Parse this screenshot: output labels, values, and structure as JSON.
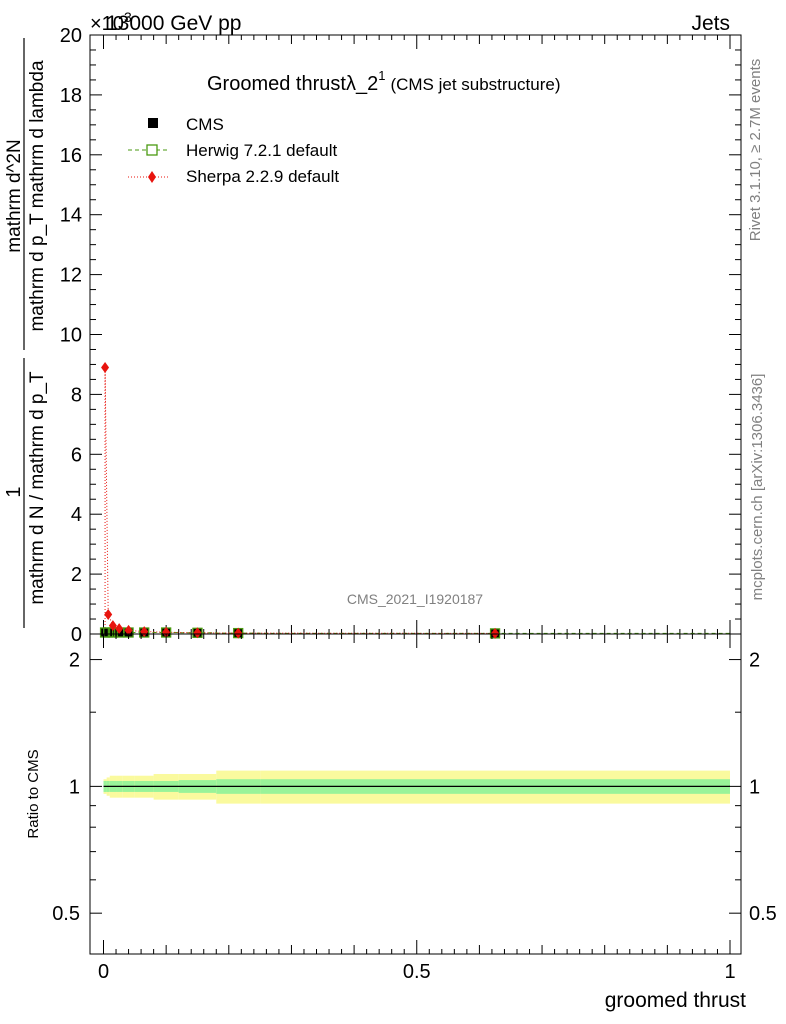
{
  "header": {
    "energy_label": "13000 GeV pp",
    "process_label": "Jets",
    "exponent_label": "×10",
    "exponent_power": "3"
  },
  "side_labels": {
    "rivet": "Rivet 3.1.10, ≥ 2.7M events",
    "mcplots": "mcplots.cern.ch [arXiv:1306.3436]"
  },
  "watermark": "CMS_2021_I1920187",
  "colors": {
    "cms": "#000000",
    "herwig": "#4a9a12",
    "sherpa": "#e8140e",
    "band_inner": "#99f399",
    "band_outer": "#fafa9e"
  },
  "chart_data": [
    {
      "type": "scatter",
      "title_main": "Groomed thrust",
      "title_symbol": "λ_2",
      "title_sup": "1",
      "title_sub": "(CMS jet substructure)",
      "ylabel_numerator": "1",
      "ylabel_denominator": "mathrm d N / mathrm d p_T",
      "ylabel_right_num": "mathrm d^2N",
      "ylabel_right_den": "mathrm d p_T mathrm d lambda",
      "xlim": [
        0,
        1
      ],
      "ylim": [
        0,
        20
      ],
      "y_multiplier": 1000,
      "y_ticks": [
        0,
        2,
        4,
        6,
        8,
        10,
        12,
        14,
        16,
        18,
        20
      ],
      "x_ticks": [
        0,
        0.5,
        1
      ],
      "legend": [
        {
          "key": "cms",
          "label": "CMS",
          "marker": "square-filled"
        },
        {
          "key": "herwig",
          "label": "Herwig 7.2.1 default",
          "marker": "square-open"
        },
        {
          "key": "sherpa",
          "label": "Sherpa 2.2.9 default",
          "marker": "diamond"
        }
      ],
      "legend_position": "top-left",
      "bins": [
        0,
        0.005,
        0.01,
        0.02,
        0.03,
        0.05,
        0.08,
        0.12,
        0.18,
        0.25,
        1.0
      ],
      "series": [
        {
          "name": "CMS",
          "key": "cms",
          "x": [
            0.0025,
            0.0075,
            0.015,
            0.025,
            0.04,
            0.065,
            0.1,
            0.15,
            0.215,
            0.625
          ],
          "y": [
            0.05,
            0.05,
            0.05,
            0.05,
            0.05,
            0.05,
            0.05,
            0.04,
            0.03,
            0.02
          ]
        },
        {
          "name": "Herwig 7.2.1 default",
          "key": "herwig",
          "x": [
            0.0025,
            0.0075,
            0.015,
            0.025,
            0.04,
            0.065,
            0.1,
            0.15,
            0.215,
            0.625
          ],
          "y": [
            0.05,
            0.05,
            0.05,
            0.05,
            0.05,
            0.05,
            0.05,
            0.04,
            0.03,
            0.02
          ]
        },
        {
          "name": "Sherpa 2.2.9 default",
          "key": "sherpa",
          "x": [
            0.0025,
            0.0075,
            0.015,
            0.025,
            0.04,
            0.065,
            0.1,
            0.15,
            0.215,
            0.625
          ],
          "y": [
            8.9,
            0.65,
            0.28,
            0.18,
            0.12,
            0.08,
            0.06,
            0.04,
            0.03,
            0.02
          ]
        }
      ]
    },
    {
      "type": "line",
      "ylabel": "Ratio to CMS",
      "xlabel": "groomed thrust",
      "xlim": [
        0,
        1
      ],
      "ylim": [
        0.4,
        2.3
      ],
      "y_scale": "log",
      "y_ticks": [
        0.5,
        1,
        2
      ],
      "reference": 1,
      "bins": [
        0,
        0.005,
        0.01,
        0.02,
        0.03,
        0.05,
        0.08,
        0.12,
        0.18,
        0.25,
        1.0
      ],
      "band_inner_half": [
        0.03,
        0.03,
        0.03,
        0.03,
        0.03,
        0.03,
        0.03,
        0.035,
        0.04,
        0.04
      ],
      "band_outer_half": [
        0.04,
        0.05,
        0.06,
        0.06,
        0.06,
        0.06,
        0.07,
        0.07,
        0.09,
        0.09
      ]
    }
  ]
}
